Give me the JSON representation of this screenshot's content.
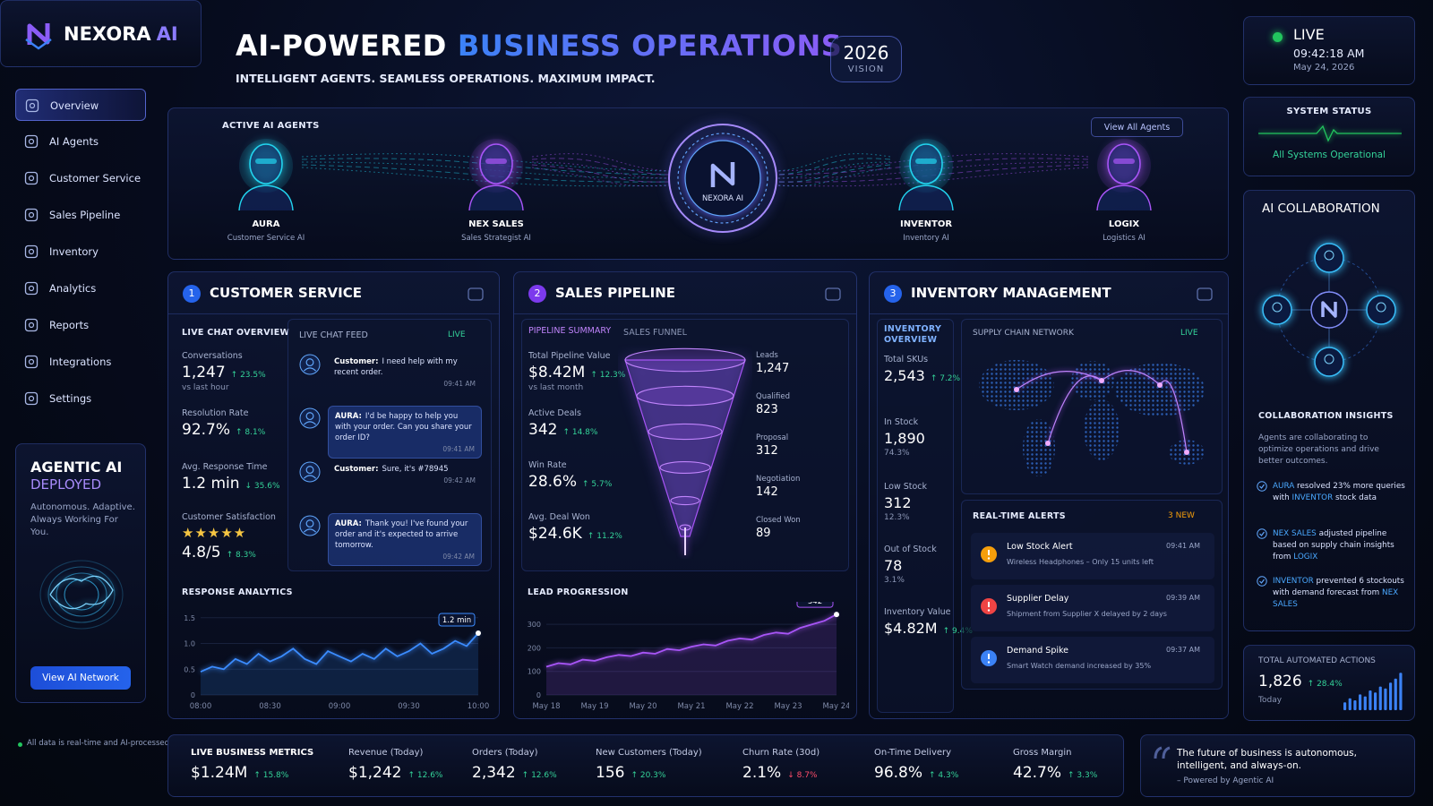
{
  "brand": {
    "name": "NEXORA",
    "accent": "AI"
  },
  "nav": [
    "Overview",
    "AI Agents",
    "Customer Service",
    "Sales Pipeline",
    "Inventory",
    "Analytics",
    "Reports",
    "Integrations",
    "Settings"
  ],
  "promo": {
    "title": "AGENTIC AI",
    "status": "DEPLOYED",
    "tagline": "Autonomous. Adaptive. Always Working For You.",
    "button": "View AI Network"
  },
  "footnote": "All data is real-time and AI-processed",
  "header": {
    "title_lead": "AI-POWERED",
    "title_accent": "BUSINESS OPERATIONS",
    "subtitle": "INTELLIGENT AGENTS. SEAMLESS OPERATIONS. MAXIMUM IMPACT.",
    "badge_year": "2026",
    "badge_label": "VISION"
  },
  "clock": {
    "status": "LIVE",
    "time": "09:42:18 AM",
    "date": "May 24, 2026"
  },
  "system": {
    "title": "SYSTEM STATUS",
    "status": "All Systems Operational"
  },
  "agents_banner": {
    "title": "ACTIVE AI AGENTS",
    "link": "View All Agents",
    "hub": "NEXORA AI",
    "agents": [
      {
        "name": "AURA",
        "role": "Customer Service AI",
        "color": "#22d3ee"
      },
      {
        "name": "NEX SALES",
        "role": "Sales Strategist AI",
        "color": "#a855f7"
      },
      {
        "name": "INVENTOR",
        "role": "Inventory AI",
        "color": "#22d3ee"
      },
      {
        "name": "LOGIX",
        "role": "Logistics AI",
        "color": "#a855f7"
      }
    ]
  },
  "customer_service": {
    "step": "1",
    "title": "CUSTOMER SERVICE",
    "overview_title": "LIVE CHAT OVERVIEW",
    "metrics": [
      {
        "label": "Conversations",
        "value": "1,247",
        "change": "↑ 23.5%",
        "note": "vs last hour"
      },
      {
        "label": "Resolution Rate",
        "value": "92.7%",
        "change": "↑ 8.1%"
      },
      {
        "label": "Avg. Response Time",
        "value": "1.2 min",
        "change": "↓ 35.6%"
      },
      {
        "label": "Customer Satisfaction",
        "stars": "★★★★★",
        "value": "4.8/5",
        "change": "↑ 8.3%"
      }
    ],
    "feed": {
      "title": "LIVE CHAT FEED",
      "live": "LIVE",
      "messages": [
        {
          "sender": "Customer:",
          "text": "I need help with my recent order.",
          "time": "09:41 AM"
        },
        {
          "sender": "AURA:",
          "text": "I'd be happy to help you with your order. Can you share your order ID?",
          "time": "09:41 AM"
        },
        {
          "sender": "Customer:",
          "text": "Sure, it's #78945",
          "time": "09:42 AM"
        },
        {
          "sender": "AURA:",
          "text": "Thank you! I've found your order and it's expected to arrive tomorrow.",
          "time": "09:42 AM"
        }
      ]
    },
    "response_analytics": {
      "type": "line",
      "title": "RESPONSE ANALYTICS",
      "color": "#3b8cff",
      "categories": [
        "08:00",
        null,
        null,
        null,
        null,
        null,
        "08:30",
        null,
        null,
        null,
        null,
        null,
        "09:00",
        null,
        null,
        null,
        null,
        null,
        "09:30",
        null,
        null,
        null,
        null,
        null,
        "10:00"
      ],
      "values": [
        0.45,
        0.55,
        0.5,
        0.7,
        0.6,
        0.8,
        0.65,
        0.75,
        0.9,
        0.7,
        0.6,
        0.85,
        0.75,
        0.65,
        0.8,
        0.7,
        0.9,
        0.75,
        0.85,
        1.0,
        0.8,
        0.9,
        1.05,
        0.95,
        1.2
      ],
      "value_labels": [
        null,
        null,
        null,
        null,
        null,
        null,
        null,
        null,
        null,
        null,
        null,
        null,
        null,
        null,
        null,
        null,
        null,
        null,
        null,
        null,
        null,
        null,
        null,
        null,
        "1.2 min"
      ],
      "ylim": [
        0,
        1.6
      ],
      "yticks": [
        0,
        0.5,
        {
          "value": 1,
          "label": "1.0"
        },
        1.5
      ]
    }
  },
  "sales_pipeline": {
    "step": "2",
    "title": "SALES PIPELINE",
    "summary_title": "PIPELINE SUMMARY",
    "funnel_title": "SALES FUNNEL",
    "metrics": [
      {
        "label": "Total Pipeline Value",
        "value": "$8.42M",
        "change": "↑ 12.3%",
        "note": "vs last month"
      },
      {
        "label": "Active Deals",
        "value": "342",
        "change": "↑ 14.8%"
      },
      {
        "label": "Win Rate",
        "value": "28.6%",
        "change": "↑ 5.7%"
      },
      {
        "label": "Avg. Deal Won",
        "value": "$24.6K",
        "change": "↑ 11.2%"
      }
    ],
    "funnel": [
      {
        "label": "Leads",
        "value": "1,247"
      },
      {
        "label": "Qualified",
        "value": "823"
      },
      {
        "label": "Proposal",
        "value": "312"
      },
      {
        "label": "Negotiation",
        "value": "142"
      },
      {
        "label": "Closed Won",
        "value": "89"
      }
    ],
    "lead_progression": {
      "type": "line",
      "title": "LEAD PROGRESSION",
      "color": "#a855f7",
      "categories": [
        "May 18",
        null,
        null,
        null,
        "May 19",
        null,
        null,
        null,
        "May 20",
        null,
        null,
        null,
        "May 21",
        null,
        null,
        null,
        "May 22",
        null,
        null,
        null,
        "May 23",
        null,
        null,
        null,
        "May 24"
      ],
      "values": [
        120,
        135,
        130,
        150,
        145,
        160,
        170,
        165,
        180,
        175,
        195,
        190,
        205,
        215,
        210,
        230,
        240,
        235,
        255,
        265,
        260,
        285,
        300,
        315,
        342
      ],
      "ylim": [
        0,
        350
      ],
      "yticks": [
        0,
        100,
        200,
        300
      ]
    }
  },
  "inventory": {
    "step": "3",
    "title": "INVENTORY MANAGEMENT",
    "overview_title": "INVENTORY OVERVIEW",
    "metrics": [
      {
        "label": "Total SKUs",
        "value": "2,543",
        "change": "↑ 7.2%"
      },
      {
        "label": "In Stock",
        "value": "1,890",
        "note": "74.3%"
      },
      {
        "label": "Low Stock",
        "value": "312",
        "note": "12.3%"
      },
      {
        "label": "Out of Stock",
        "value": "78",
        "note": "3.1%"
      },
      {
        "label": "Inventory Value",
        "value": "$4.82M",
        "change": "↑ 9.4%"
      }
    ],
    "map_title": "SUPPLY CHAIN NETWORK",
    "map_live": "LIVE",
    "alerts_title": "REAL-TIME ALERTS",
    "alerts_badge": "3 NEW",
    "alerts": [
      {
        "title": "Low Stock Alert",
        "text": "Wireless Headphones – Only 15 units left",
        "time": "09:41 AM",
        "color": "#f59e0b"
      },
      {
        "title": "Supplier Delay",
        "text": "Shipment from Supplier X delayed by 2 days",
        "time": "09:39 AM",
        "color": "#ef4444"
      },
      {
        "title": "Demand Spike",
        "text": "Smart Watch demand increased by 35%",
        "time": "09:37 AM",
        "color": "#3b82f6"
      }
    ]
  },
  "collaboration": {
    "title": "AI COLLABORATION",
    "insights_title": "COLLABORATION INSIGHTS",
    "intro": "Agents are collaborating to optimize operations and drive better outcomes.",
    "insights": [
      [
        "AURA",
        " resolved 23% more queries with ",
        "INVENTOR",
        " stock data"
      ],
      [
        "NEX SALES",
        " adjusted pipeline based on supply chain insights from ",
        "LOGIX"
      ],
      [
        "INVENTOR",
        " prevented 6 stockouts with demand forecast from ",
        "NEX SALES"
      ]
    ]
  },
  "automation": {
    "title": "TOTAL AUTOMATED ACTIONS",
    "value": "1,826",
    "change": "↑ 28.4%",
    "note": "Today",
    "trend": {
      "type": "bar",
      "values": [
        2,
        3,
        2.5,
        4,
        3.5,
        5,
        4.5,
        6,
        5.5,
        7,
        8,
        9.5
      ],
      "ylim": [
        0,
        10
      ],
      "color": "#3b82f6"
    }
  },
  "business_metrics": [
    {
      "label": "LIVE BUSINESS METRICS",
      "value": "$1.24M",
      "change": "↑ 15.8%"
    },
    {
      "label": "Revenue (Today)",
      "value": "$1,242",
      "change": "↑ 12.6%"
    },
    {
      "label": "Orders (Today)",
      "value": "2,342",
      "change": "↑ 12.6%"
    },
    {
      "label": "New Customers (Today)",
      "value": "156",
      "change": "↑ 20.3%"
    },
    {
      "label": "Churn Rate (30d)",
      "value": "2.1%",
      "change": "↓ 8.7%",
      "change_color": "#ff4d6a"
    },
    {
      "label": "On-Time Delivery",
      "value": "96.8%",
      "change": "↑ 4.3%"
    },
    {
      "label": "Gross Margin",
      "value": "42.7%",
      "change": "↑ 3.3%"
    }
  ],
  "quote": {
    "text": "The future of business is autonomous, intelligent, and always-on.",
    "author": "– Powered by Agentic AI"
  }
}
